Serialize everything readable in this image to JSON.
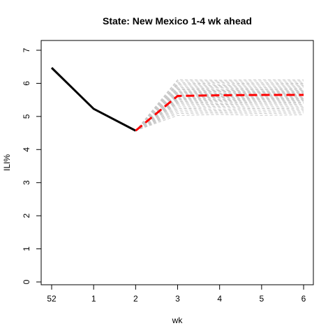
{
  "chart_data": {
    "type": "line",
    "title": "State: New Mexico 1-4 wk ahead",
    "xlabel": "wk",
    "ylabel": "ILI%",
    "x_tick_labels": [
      "52",
      "1",
      "2",
      "3",
      "4",
      "5",
      "6"
    ],
    "y_ticks": [
      0,
      1,
      2,
      3,
      4,
      5,
      6,
      7
    ],
    "ylim": [
      0,
      7.2
    ],
    "grid": false,
    "legend": "none",
    "series": [
      {
        "role": "observed",
        "color": "#000000",
        "values": [
          6.47,
          5.23,
          4.57
        ]
      },
      {
        "role": "forecast-mean",
        "color": "#ff0000",
        "start_index": 2,
        "values": [
          4.57,
          5.62,
          5.64,
          5.65,
          5.65
        ]
      }
    ],
    "simulations": {
      "color": "#c8c8c8",
      "start_index": 2,
      "start_value": 4.57,
      "plateau_values": [
        5.05,
        5.1,
        5.14,
        5.18,
        5.22,
        5.26,
        5.3,
        5.34,
        5.37,
        5.4,
        5.43,
        5.46,
        5.48,
        5.5,
        5.52,
        5.54,
        5.56,
        5.58,
        5.6,
        5.62,
        5.64,
        5.66,
        5.68,
        5.7,
        5.72,
        5.74,
        5.76,
        5.78,
        5.8,
        5.82,
        5.85,
        5.88,
        5.91,
        5.94,
        5.97,
        6.0,
        6.03,
        6.07,
        6.1
      ]
    }
  }
}
